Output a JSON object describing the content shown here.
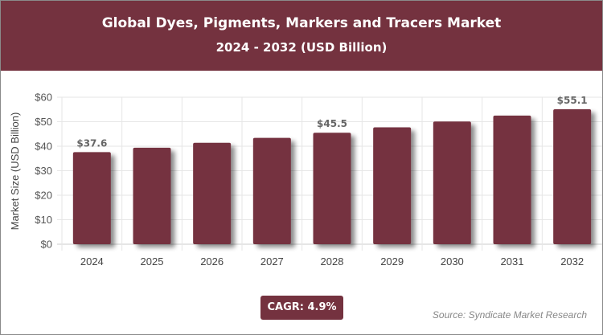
{
  "header": {
    "title": "Global Dyes, Pigments, Markers and Tracers Market",
    "subtitle": "2024 - 2032 (USD Billion)"
  },
  "chart_data": {
    "type": "bar",
    "categories": [
      "2024",
      "2025",
      "2026",
      "2027",
      "2028",
      "2029",
      "2030",
      "2031",
      "2032"
    ],
    "values": [
      37.6,
      39.4,
      41.4,
      43.4,
      45.5,
      47.7,
      50.1,
      52.5,
      55.1
    ],
    "data_labels": {
      "0": "$37.6",
      "4": "$45.5",
      "8": "$55.1"
    },
    "ylabel": "Market Size (USD Billion)",
    "xlabel": "",
    "ylim": [
      0,
      60
    ],
    "yticks": [
      "$0",
      "$10",
      "$20",
      "$30",
      "$40",
      "$50",
      "$60"
    ],
    "grid": true,
    "bar_color": "#74323f"
  },
  "cagr": "CAGR: 4.9%",
  "source": "Source: Syndicate Market Research"
}
